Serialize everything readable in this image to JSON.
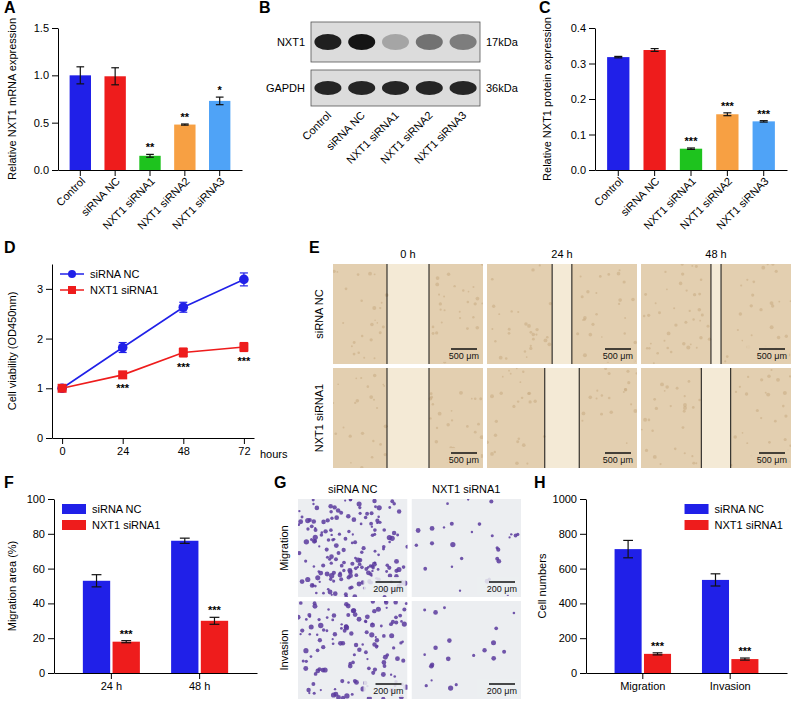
{
  "chart_data": [
    {
      "panel": "A",
      "type": "bar",
      "y_label": "Relative NXT1 mRNA expression",
      "categories": [
        "Control",
        "siRNA NC",
        "NXT1 siRNA1",
        "NXT1 siRNA2",
        "NXT1 siRNA3"
      ],
      "values": [
        1.0,
        0.99,
        0.15,
        0.48,
        0.73
      ],
      "errors": [
        0.09,
        0.09,
        0.015,
        0.006,
        0.04
      ],
      "annotations": [
        null,
        null,
        "**",
        "**",
        "*"
      ],
      "colors": [
        "#2020e8",
        "#ee1c1c",
        "#1ec31e",
        "#f7a043",
        "#4fa3f7"
      ],
      "ylim": [
        0,
        1.5
      ],
      "yticks": [
        {
          "value": 0,
          "label": "0.0"
        },
        0.5,
        {
          "value": 1,
          "label": "1.0"
        },
        1.5
      ]
    },
    {
      "panel": "B",
      "type": "blot",
      "lanes": [
        "Control",
        "siRNA NC",
        "NXT1 siRNA1",
        "NXT1 siRNA2",
        "NXT1 siRNA3"
      ],
      "rows": [
        {
          "name": "NXT1",
          "size": "17kDa"
        },
        {
          "name": "GAPDH",
          "size": "36kDa"
        }
      ]
    },
    {
      "panel": "C",
      "type": "bar",
      "y_label": "Relative NXT1 protein expression",
      "categories": [
        "Control",
        "siRNA NC",
        "NXT1 siRNA1",
        "NXT1 siRNA2",
        "NXT1 siRNA3"
      ],
      "values": [
        0.318,
        0.338,
        0.06,
        0.157,
        0.137
      ],
      "errors": [
        0.002,
        0.004,
        0.002,
        0.004,
        0.002
      ],
      "annotations": [
        null,
        null,
        "***",
        "***",
        "***"
      ],
      "colors": [
        "#2020e8",
        "#ee1c1c",
        "#1ec31e",
        "#f7a043",
        "#4fa3f7"
      ],
      "ylim": [
        0,
        0.4
      ],
      "yticks": [
        {
          "value": 0,
          "label": "0.0"
        },
        0.1,
        0.2,
        0.3,
        0.4
      ]
    },
    {
      "panel": "D",
      "type": "line",
      "x_label": "hours",
      "y_label": "Cell viability (OD450nm)",
      "x": [
        0,
        24,
        48,
        72
      ],
      "xlim": [
        -4,
        76
      ],
      "xticks": [
        0,
        24,
        48,
        72
      ],
      "ylim": [
        0,
        3.5
      ],
      "yticks": [
        0,
        1,
        2,
        3
      ],
      "legend": "upper left",
      "series": [
        {
          "name": "siRNA NC",
          "color": "#2020e8",
          "marker": "circle",
          "values": [
            1.0,
            1.82,
            2.63,
            3.19
          ],
          "errors": [
            0.05,
            0.1,
            0.1,
            0.13
          ]
        },
        {
          "name": "NXT1 siRNA1",
          "color": "#ee1c1c",
          "marker": "square",
          "values": [
            1.0,
            1.27,
            1.72,
            1.83
          ],
          "errors": [
            0.05,
            0.06,
            0.09,
            0.09
          ],
          "annotations": [
            null,
            "***",
            "***",
            "***"
          ]
        }
      ]
    },
    {
      "panel": "E",
      "type": "image_grid",
      "columns": [
        "0 h",
        "24 h",
        "48 h"
      ],
      "rows": [
        "siRNA NC",
        "NXT1 siRNA1"
      ],
      "scale_bar": "500 μm"
    },
    {
      "panel": "F",
      "type": "bar",
      "y_label": "Migration area (%)",
      "categories": [
        "24 h",
        "48 h"
      ],
      "ylim": [
        0,
        100
      ],
      "yticks": [
        0,
        20,
        40,
        60,
        80,
        100
      ],
      "legend": "upper left",
      "series": [
        {
          "name": "siRNA NC",
          "color": "#2020e8",
          "values": [
            53,
            76
          ],
          "errors": [
            3.5,
            1.5
          ]
        },
        {
          "name": "NXT1 siRNA1",
          "color": "#ee1c1c",
          "values": [
            18,
            30
          ],
          "errors": [
            0.6,
            2
          ],
          "annotations": [
            "***",
            "***"
          ]
        }
      ]
    },
    {
      "panel": "G",
      "type": "image_grid",
      "columns": [
        "siRNA NC",
        "NXT1 siRNA1"
      ],
      "rows": [
        "Migration",
        "Invasion"
      ],
      "scale_bar": "200 μm"
    },
    {
      "panel": "H",
      "type": "bar",
      "y_label": "Cell numbers",
      "categories": [
        "Migration",
        "Invasion"
      ],
      "ylim": [
        0,
        1000
      ],
      "yticks": [
        0,
        200,
        400,
        600,
        800,
        1000
      ],
      "legend": "upper right",
      "series": [
        {
          "name": "siRNA NC",
          "color": "#2020e8",
          "values": [
            712,
            535
          ],
          "errors": [
            50,
            35
          ]
        },
        {
          "name": "NXT1 siRNA1",
          "color": "#ee1c1c",
          "values": [
            110,
            80
          ],
          "errors": [
            6,
            6
          ],
          "annotations": [
            "***",
            "***"
          ]
        }
      ]
    }
  ]
}
